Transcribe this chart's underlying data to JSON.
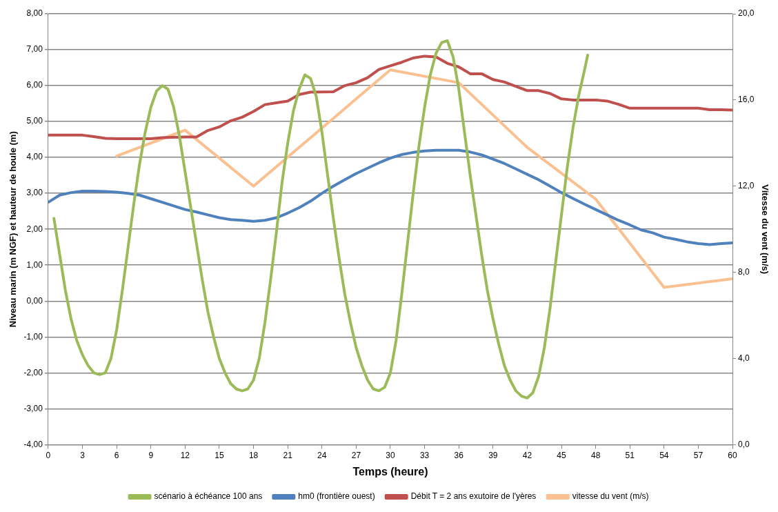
{
  "chart_data": {
    "type": "line",
    "xlabel": "Temps (heure)",
    "ylabel": "Niveau marin (m NGF) et hauteur de houle (m)",
    "y2label": "Vitesse du vent (m/s)",
    "xlim": [
      0,
      60
    ],
    "xticks": [
      0,
      3,
      6,
      9,
      12,
      15,
      18,
      21,
      24,
      27,
      30,
      33,
      36,
      39,
      42,
      45,
      48,
      51,
      54,
      57,
      60
    ],
    "ylim": [
      -4,
      8
    ],
    "yticks": [
      {
        "value": -4,
        "label": "-4,00"
      },
      {
        "value": -3,
        "label": "-3,00"
      },
      {
        "value": -2,
        "label": "-2,00"
      },
      {
        "value": -1,
        "label": "-1,00"
      },
      {
        "value": 0,
        "label": "0,00"
      },
      {
        "value": 1,
        "label": "1,00"
      },
      {
        "value": 2,
        "label": "2,00"
      },
      {
        "value": 3,
        "label": "3,00"
      },
      {
        "value": 4,
        "label": "4,00"
      },
      {
        "value": 5,
        "label": "5,00"
      },
      {
        "value": 6,
        "label": "6,00"
      },
      {
        "value": 7,
        "label": "7,00"
      },
      {
        "value": 8,
        "label": "8,00"
      }
    ],
    "y2lim": [
      0,
      20
    ],
    "y2ticks": [
      {
        "value": 0,
        "label": "0,0"
      },
      {
        "value": 4,
        "label": "4,0"
      },
      {
        "value": 8,
        "label": "8,0"
      },
      {
        "value": 12,
        "label": "12,0"
      },
      {
        "value": 16,
        "label": "16,0"
      },
      {
        "value": 20,
        "label": "20,0"
      }
    ],
    "grid": "y",
    "legend": "bottom",
    "marker": "none",
    "series": [
      {
        "name": "scénario à échéance 100 ans",
        "color": "#9bbb59",
        "x": [
          0.5,
          1,
          1.5,
          2,
          2.5,
          3,
          3.5,
          4,
          4.5,
          5,
          5.5,
          6,
          6.5,
          7,
          7.5,
          8,
          8.5,
          9,
          9.5,
          10,
          10.5,
          11,
          11.5,
          12,
          12.5,
          13,
          13.5,
          14,
          14.5,
          15,
          15.5,
          16,
          16.5,
          17,
          17.5,
          18,
          18.5,
          19,
          19.5,
          20,
          20.5,
          21,
          21.5,
          22,
          22.5,
          23,
          23.5,
          24,
          24.5,
          25,
          25.5,
          26,
          26.5,
          27,
          27.5,
          28,
          28.5,
          29,
          29.5,
          30,
          30.5,
          31,
          31.5,
          32,
          32.5,
          33,
          33.5,
          34,
          34.5,
          35,
          35.5,
          36,
          36.5,
          37,
          37.5,
          38,
          38.5,
          39,
          39.5,
          40,
          40.5,
          41,
          41.5,
          42,
          42.5,
          43,
          43.5,
          44,
          44.5,
          45,
          45.5,
          46,
          46.5,
          47,
          47.3
        ],
        "values": [
          2.3,
          1.3,
          0.3,
          -0.5,
          -1.1,
          -1.5,
          -1.8,
          -2.0,
          -2.05,
          -2.0,
          -1.6,
          -0.8,
          0.3,
          1.5,
          2.7,
          3.8,
          4.7,
          5.4,
          5.85,
          6.0,
          5.9,
          5.4,
          4.6,
          3.6,
          2.6,
          1.6,
          0.6,
          -0.3,
          -1.0,
          -1.6,
          -2.0,
          -2.3,
          -2.45,
          -2.5,
          -2.45,
          -2.2,
          -1.6,
          -0.6,
          0.6,
          1.9,
          3.3,
          4.4,
          5.3,
          5.9,
          6.3,
          6.2,
          5.7,
          4.7,
          3.5,
          2.3,
          1.2,
          0.2,
          -0.6,
          -1.3,
          -1.8,
          -2.2,
          -2.45,
          -2.5,
          -2.4,
          -2.0,
          -1.1,
          0.2,
          1.6,
          3.0,
          4.3,
          5.4,
          6.3,
          6.9,
          7.2,
          7.25,
          6.8,
          5.9,
          4.7,
          3.5,
          2.4,
          1.3,
          0.3,
          -0.5,
          -1.2,
          -1.8,
          -2.2,
          -2.5,
          -2.65,
          -2.7,
          -2.55,
          -2.1,
          -1.3,
          -0.2,
          1.1,
          2.4,
          3.7,
          4.8,
          5.7,
          6.4,
          6.85
        ]
      },
      {
        "name": "hm0 (frontière ouest)",
        "color": "#4f81bd",
        "x": [
          0,
          1,
          2,
          3,
          4,
          5,
          6,
          7,
          8,
          9,
          10,
          11,
          12,
          13,
          14,
          15,
          16,
          17,
          18,
          19,
          20,
          21,
          22,
          23,
          24,
          25,
          26,
          27,
          28,
          29,
          30,
          31,
          32,
          33,
          34,
          35,
          36,
          37,
          38,
          39,
          40,
          41,
          42,
          43,
          44,
          45,
          46,
          47,
          48,
          49,
          50,
          51,
          52,
          53,
          54,
          55,
          56,
          57,
          58,
          59,
          60
        ],
        "values": [
          2.75,
          2.95,
          3.02,
          3.06,
          3.06,
          3.05,
          3.03,
          3.0,
          2.95,
          2.85,
          2.75,
          2.65,
          2.55,
          2.48,
          2.4,
          2.32,
          2.27,
          2.25,
          2.22,
          2.25,
          2.32,
          2.45,
          2.6,
          2.78,
          3.0,
          3.2,
          3.38,
          3.55,
          3.7,
          3.85,
          3.98,
          4.08,
          4.14,
          4.18,
          4.2,
          4.2,
          4.2,
          4.15,
          4.07,
          3.95,
          3.83,
          3.68,
          3.53,
          3.38,
          3.2,
          3.02,
          2.86,
          2.7,
          2.55,
          2.4,
          2.25,
          2.12,
          1.98,
          1.9,
          1.78,
          1.72,
          1.65,
          1.6,
          1.57,
          1.6,
          1.62
        ]
      },
      {
        "name": "Débit T = 2 ans exutoire de l'yères",
        "color": "#c0504d",
        "x": [
          0,
          3,
          4,
          5,
          6,
          9,
          10,
          12,
          13,
          14,
          15,
          16,
          17,
          18,
          19,
          20,
          21,
          22,
          23,
          25,
          26,
          27,
          28,
          29,
          30,
          31,
          32,
          33,
          34,
          35,
          36,
          37,
          38,
          39,
          40,
          41,
          42,
          43,
          44,
          45,
          46,
          47,
          48,
          49,
          50,
          51,
          56,
          57,
          58,
          59,
          60
        ],
        "values": [
          4.62,
          4.62,
          4.58,
          4.53,
          4.52,
          4.52,
          4.55,
          4.57,
          4.57,
          4.75,
          4.85,
          5.02,
          5.12,
          5.28,
          5.47,
          5.52,
          5.57,
          5.75,
          5.82,
          5.83,
          6.0,
          6.08,
          6.22,
          6.45,
          6.55,
          6.65,
          6.77,
          6.82,
          6.8,
          6.62,
          6.52,
          6.33,
          6.33,
          6.17,
          6.1,
          5.98,
          5.86,
          5.86,
          5.78,
          5.63,
          5.6,
          5.6,
          5.6,
          5.57,
          5.48,
          5.37,
          5.37,
          5.37,
          5.33,
          5.33,
          5.32
        ]
      },
      {
        "name": "vitesse du vent (m/s)",
        "color": "#fac090",
        "axis": "y2",
        "x": [
          6,
          12,
          18,
          30,
          36,
          42,
          48,
          54,
          60
        ],
        "values": [
          13.4,
          14.6,
          12.0,
          17.4,
          16.8,
          13.8,
          11.4,
          7.3,
          7.7
        ]
      }
    ]
  }
}
